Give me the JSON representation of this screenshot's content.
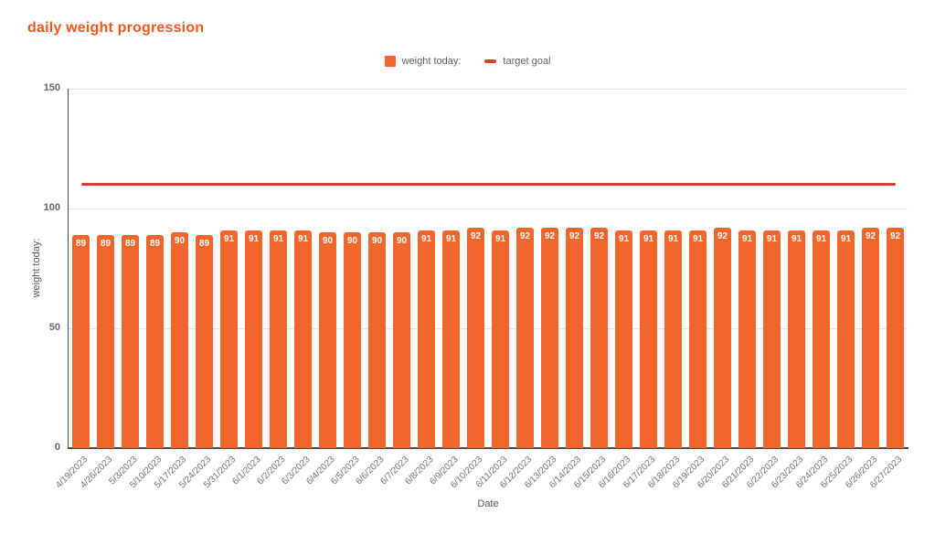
{
  "title": "daily weight progression",
  "legend": {
    "items": [
      {
        "label": "weight today:",
        "swatch": "square-icon"
      },
      {
        "label": "target goal",
        "swatch": "dash-icon"
      }
    ]
  },
  "colors": {
    "title": "#F4581E",
    "bar": "#F0662B",
    "target_line": "#DA3E2B",
    "bar_label_text": "#ffffff",
    "grid": "#e6e6e6",
    "axis": "#4a4a4a"
  },
  "chart_data": {
    "type": "bar",
    "title": "daily weight progression",
    "xlabel": "Date",
    "ylabel": "weight today:",
    "ylim": [
      0,
      150
    ],
    "yticks": [
      0,
      50,
      100,
      150
    ],
    "grid": true,
    "legend_position": "top-center",
    "bar_data_labels": true,
    "categories": [
      "4/19/2023",
      "4/26/2023",
      "5/3/2023",
      "5/10/2023",
      "5/17/2023",
      "5/24/2023",
      "5/31/2023",
      "6/1/2023",
      "6/2/2023",
      "6/3/2023",
      "6/4/2023",
      "6/5/2023",
      "6/6/2023",
      "6/7/2023",
      "6/8/2023",
      "6/9/2023",
      "6/10/2023",
      "6/11/2023",
      "6/12/2023",
      "6/13/2023",
      "6/14/2023",
      "6/15/2023",
      "6/16/2023",
      "6/17/2023",
      "6/18/2023",
      "6/19/2023",
      "6/20/2023",
      "6/21/2023",
      "6/22/2023",
      "6/23/2023",
      "6/24/2023",
      "6/25/2023",
      "6/26/2023",
      "6/27/2023"
    ],
    "series": [
      {
        "name": "weight today:",
        "type": "bar",
        "color": "#F0662B",
        "values": [
          89,
          89,
          89,
          89,
          90,
          89,
          91,
          91,
          91,
          91,
          90,
          90,
          90,
          90,
          91,
          91,
          92,
          91,
          92,
          92,
          92,
          92,
          91,
          91,
          91,
          91,
          92,
          91,
          91,
          91,
          91,
          91,
          92,
          92
        ]
      },
      {
        "name": "target goal",
        "type": "line",
        "color": "#DA3E2B",
        "constant_value": 110
      }
    ]
  }
}
